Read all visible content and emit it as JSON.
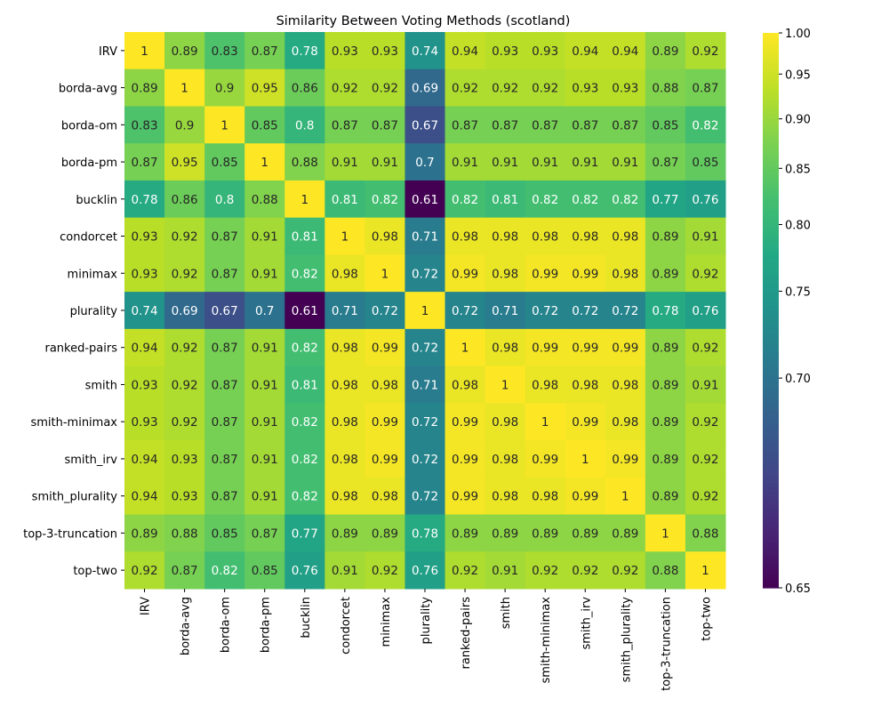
{
  "chart_data": {
    "type": "heatmap",
    "title": "Similarity Between Voting Methods (scotland)",
    "xlabel": "",
    "ylabel": "",
    "labels": [
      "IRV",
      "borda-avg",
      "borda-om",
      "borda-pm",
      "bucklin",
      "condorcet",
      "minimax",
      "plurality",
      "ranked-pairs",
      "smith",
      "smith-minimax",
      "smith_irv",
      "smith_plurality",
      "top-3-truncation",
      "top-two"
    ],
    "values": [
      [
        1,
        0.89,
        0.83,
        0.87,
        0.78,
        0.93,
        0.93,
        0.74,
        0.94,
        0.93,
        0.93,
        0.94,
        0.94,
        0.89,
        0.92
      ],
      [
        0.89,
        1,
        0.9,
        0.95,
        0.86,
        0.92,
        0.92,
        0.69,
        0.92,
        0.92,
        0.92,
        0.93,
        0.93,
        0.88,
        0.87
      ],
      [
        0.83,
        0.9,
        1,
        0.85,
        0.8,
        0.87,
        0.87,
        0.67,
        0.87,
        0.87,
        0.87,
        0.87,
        0.87,
        0.85,
        0.82
      ],
      [
        0.87,
        0.95,
        0.85,
        1,
        0.88,
        0.91,
        0.91,
        0.7,
        0.91,
        0.91,
        0.91,
        0.91,
        0.91,
        0.87,
        0.85
      ],
      [
        0.78,
        0.86,
        0.8,
        0.88,
        1,
        0.81,
        0.82,
        0.61,
        0.82,
        0.81,
        0.82,
        0.82,
        0.82,
        0.77,
        0.76
      ],
      [
        0.93,
        0.92,
        0.87,
        0.91,
        0.81,
        1,
        0.98,
        0.71,
        0.98,
        0.98,
        0.98,
        0.98,
        0.98,
        0.89,
        0.91
      ],
      [
        0.93,
        0.92,
        0.87,
        0.91,
        0.82,
        0.98,
        1,
        0.72,
        0.99,
        0.98,
        0.99,
        0.99,
        0.98,
        0.89,
        0.92
      ],
      [
        0.74,
        0.69,
        0.67,
        0.7,
        0.61,
        0.71,
        0.72,
        1,
        0.72,
        0.71,
        0.72,
        0.72,
        0.72,
        0.78,
        0.76
      ],
      [
        0.94,
        0.92,
        0.87,
        0.91,
        0.82,
        0.98,
        0.99,
        0.72,
        1,
        0.98,
        0.99,
        0.99,
        0.99,
        0.89,
        0.92
      ],
      [
        0.93,
        0.92,
        0.87,
        0.91,
        0.81,
        0.98,
        0.98,
        0.71,
        0.98,
        1,
        0.98,
        0.98,
        0.98,
        0.89,
        0.91
      ],
      [
        0.93,
        0.92,
        0.87,
        0.91,
        0.82,
        0.98,
        0.99,
        0.72,
        0.99,
        0.98,
        1,
        0.99,
        0.98,
        0.89,
        0.92
      ],
      [
        0.94,
        0.93,
        0.87,
        0.91,
        0.82,
        0.98,
        0.99,
        0.72,
        0.99,
        0.98,
        0.99,
        1,
        0.99,
        0.89,
        0.92
      ],
      [
        0.94,
        0.93,
        0.87,
        0.91,
        0.82,
        0.98,
        0.98,
        0.72,
        0.99,
        0.98,
        0.98,
        0.99,
        1,
        0.89,
        0.92
      ],
      [
        0.89,
        0.88,
        0.85,
        0.87,
        0.77,
        0.89,
        0.89,
        0.78,
        0.89,
        0.89,
        0.89,
        0.89,
        0.89,
        1,
        0.88
      ],
      [
        0.92,
        0.87,
        0.82,
        0.85,
        0.76,
        0.91,
        0.92,
        0.76,
        0.92,
        0.91,
        0.92,
        0.92,
        0.92,
        0.88,
        1
      ]
    ],
    "colormap": "viridis",
    "colorbar": {
      "range": [
        0.65,
        1.0
      ],
      "scale": "power (gamma 0.5)",
      "ticks": [
        "0.65",
        "0.70",
        "0.75",
        "0.80",
        "0.85",
        "0.90",
        "0.95",
        "1.00"
      ]
    },
    "annotations": "cell values shown",
    "grid": false
  }
}
